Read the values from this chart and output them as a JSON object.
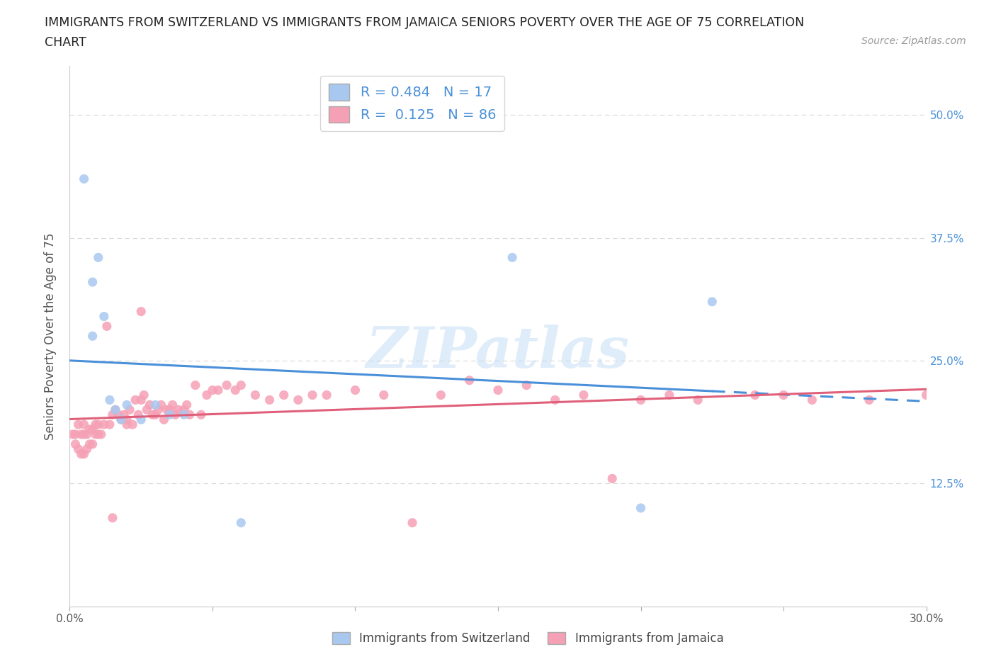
{
  "title_line1": "IMMIGRANTS FROM SWITZERLAND VS IMMIGRANTS FROM JAMAICA SENIORS POVERTY OVER THE AGE OF 75 CORRELATION",
  "title_line2": "CHART",
  "source": "Source: ZipAtlas.com",
  "ylabel": "Seniors Poverty Over the Age of 75",
  "xlim": [
    0.0,
    0.3
  ],
  "ylim": [
    0.0,
    0.55
  ],
  "xticks": [
    0.0,
    0.05,
    0.1,
    0.15,
    0.2,
    0.25,
    0.3
  ],
  "xticklabels": [
    "0.0%",
    "",
    "",
    "",
    "",
    "",
    "30.0%"
  ],
  "yticks": [
    0.0,
    0.125,
    0.25,
    0.375,
    0.5
  ],
  "yticklabels_right": [
    "",
    "12.5%",
    "25.0%",
    "37.5%",
    "50.0%"
  ],
  "swiss_color": "#a8c8f0",
  "swiss_line_color": "#4a90d9",
  "jamaica_color": "#f5a0b5",
  "jamaica_line_color": "#e0607a",
  "swiss_R": 0.484,
  "swiss_N": 17,
  "jamaica_R": 0.125,
  "jamaica_N": 86,
  "watermark": "ZIPatlas",
  "background_color": "#ffffff",
  "grid_color": "#d8d8d8",
  "swiss_x": [
    0.005,
    0.008,
    0.01,
    0.012,
    0.014,
    0.016,
    0.018,
    0.02,
    0.025,
    0.03,
    0.035,
    0.04,
    0.06,
    0.155,
    0.2,
    0.225,
    0.008
  ],
  "swiss_y": [
    0.435,
    0.33,
    0.355,
    0.295,
    0.21,
    0.2,
    0.19,
    0.205,
    0.19,
    0.205,
    0.195,
    0.195,
    0.085,
    0.355,
    0.1,
    0.31,
    0.275
  ],
  "jamaica_x": [
    0.001,
    0.002,
    0.002,
    0.003,
    0.003,
    0.004,
    0.004,
    0.005,
    0.005,
    0.005,
    0.006,
    0.006,
    0.007,
    0.007,
    0.008,
    0.008,
    0.009,
    0.009,
    0.01,
    0.01,
    0.011,
    0.012,
    0.013,
    0.014,
    0.015,
    0.016,
    0.017,
    0.018,
    0.019,
    0.02,
    0.02,
    0.021,
    0.022,
    0.023,
    0.024,
    0.025,
    0.026,
    0.027,
    0.028,
    0.029,
    0.03,
    0.031,
    0.032,
    0.033,
    0.034,
    0.035,
    0.036,
    0.037,
    0.038,
    0.04,
    0.041,
    0.042,
    0.044,
    0.046,
    0.048,
    0.05,
    0.052,
    0.055,
    0.058,
    0.06,
    0.065,
    0.07,
    0.075,
    0.08,
    0.085,
    0.09,
    0.1,
    0.11,
    0.12,
    0.13,
    0.14,
    0.15,
    0.16,
    0.17,
    0.18,
    0.19,
    0.2,
    0.21,
    0.22,
    0.24,
    0.25,
    0.26,
    0.28,
    0.3,
    0.015,
    0.025
  ],
  "jamaica_y": [
    0.175,
    0.175,
    0.165,
    0.16,
    0.185,
    0.155,
    0.175,
    0.155,
    0.175,
    0.185,
    0.16,
    0.175,
    0.165,
    0.18,
    0.165,
    0.18,
    0.175,
    0.185,
    0.175,
    0.185,
    0.175,
    0.185,
    0.285,
    0.185,
    0.195,
    0.2,
    0.195,
    0.19,
    0.195,
    0.19,
    0.185,
    0.2,
    0.185,
    0.21,
    0.195,
    0.21,
    0.215,
    0.2,
    0.205,
    0.195,
    0.195,
    0.2,
    0.205,
    0.19,
    0.2,
    0.2,
    0.205,
    0.195,
    0.2,
    0.2,
    0.205,
    0.195,
    0.225,
    0.195,
    0.215,
    0.22,
    0.22,
    0.225,
    0.22,
    0.225,
    0.215,
    0.21,
    0.215,
    0.21,
    0.215,
    0.215,
    0.22,
    0.215,
    0.085,
    0.215,
    0.23,
    0.22,
    0.225,
    0.21,
    0.215,
    0.13,
    0.21,
    0.215,
    0.21,
    0.215,
    0.215,
    0.21,
    0.21,
    0.215,
    0.09,
    0.3
  ]
}
